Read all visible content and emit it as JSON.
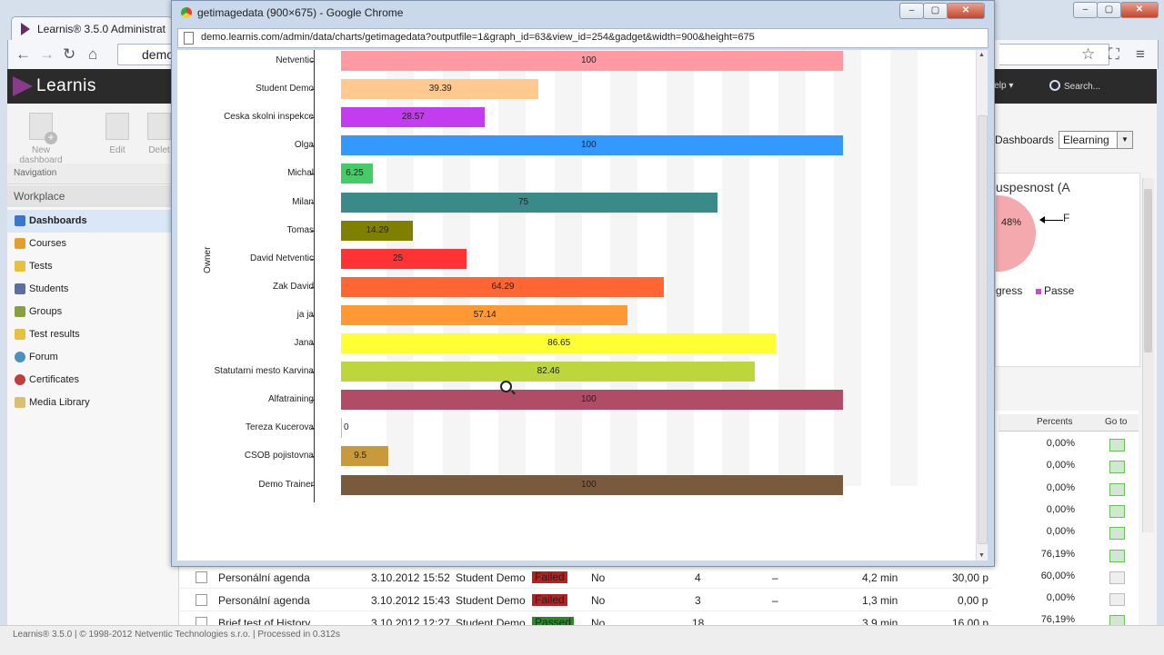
{
  "bg_browser": {
    "tab_title": "Learnis® 3.5.0 Administrat",
    "address": "demo.",
    "app": {
      "logo": "Learnis",
      "help": "Help",
      "search": "Search...",
      "toolbar": {
        "new_dashboard": "New dashboard",
        "edit": "Edit",
        "delete": "Delet"
      },
      "navigation_label": "Navigation",
      "workplace_label": "Workplace",
      "nav_items": [
        "Dashboards",
        "Courses",
        "Tests",
        "Students",
        "Groups",
        "Test results",
        "Forum",
        "Certificates",
        "Media Library"
      ],
      "dashboards_label": "Dashboards",
      "dashboards_select": "Elearning",
      "pie": {
        "title": "uspesnost (A",
        "pct": "48%",
        "label_f": "F",
        "legend_left": "gress",
        "legend_right": "Passe"
      },
      "table": {
        "headers": {
          "percents": "Percents",
          "goto": "Go to"
        },
        "percents": [
          "0,00%",
          "0,00%",
          "0,00%",
          "0,00%",
          "0,00%",
          "76,19%",
          "60,00%",
          "0,00%",
          "76,19%"
        ]
      },
      "rows": [
        {
          "name": "Personální agenda",
          "date": "3.10.2012 15:52",
          "user": "Student Demo",
          "status": "Failed",
          "flag": "No",
          "count": "4",
          "dash": "–",
          "time": "4,2 min",
          "points": "30,00 p",
          "pct": "60,00%"
        },
        {
          "name": "Personální agenda",
          "date": "3.10.2012 15:43",
          "user": "Student Demo",
          "status": "Failed",
          "flag": "No",
          "count": "3",
          "dash": "–",
          "time": "1,3 min",
          "points": "0,00 p",
          "pct": "0,00%"
        },
        {
          "name": "Brief test of History",
          "date": "3.10.2012 12:27",
          "user": "Student Demo",
          "status": "Passed",
          "flag": "No",
          "count": "18",
          "dash": "",
          "time": "3,9 min",
          "points": "16,00 p",
          "pct": "76,19%"
        }
      ],
      "footer": "Learnis® 3.5.0 | © 1998-2012 Netventic Technologies s.r.o. | Processed in 0.312s"
    }
  },
  "popup": {
    "title": "getimagedata (900×675) - Google Chrome",
    "url": "demo.learnis.com/admin/data/charts/getimagedata?outputfile=1&graph_id=63&view_id=254&gadget&width=900&height=675"
  },
  "chart_data": {
    "type": "bar",
    "orientation": "horizontal",
    "ylabel": "Owner",
    "xlim": [
      0,
      100
    ],
    "categories": [
      "Netventic",
      "Student Demo",
      "Ceska skolni inspekce",
      "Olga",
      "Michal",
      "Milan",
      "Tomas",
      "David Netventic",
      "Zak David",
      "ja ja",
      "Jana",
      "Statutarni mesto Karvina",
      "Alfatraining",
      "Tereza Kucerova",
      "CSOB pojistovna",
      "Demo Trainer"
    ],
    "values": [
      100,
      39.39,
      28.57,
      100,
      6.25,
      75,
      14.29,
      25,
      64.29,
      57.14,
      86.65,
      82.46,
      100,
      0,
      9.5,
      100
    ],
    "value_labels": [
      "100",
      "39.39",
      "28.57",
      "100",
      "6.25",
      "75",
      "14.29",
      "25",
      "64.29",
      "57.14",
      "86.65",
      "82.46",
      "100",
      "0",
      "9.5",
      "100"
    ],
    "colors": [
      "#ff9aa2",
      "#ffc98f",
      "#c43cf0",
      "#3399ff",
      "#44cc66",
      "#3a8a8a",
      "#808000",
      "#ff3333",
      "#ff6633",
      "#ff9933",
      "#ffff33",
      "#bcd63c",
      "#b04c66",
      "#bbbbbb",
      "#c89a3c",
      "#7a5a3c"
    ]
  }
}
